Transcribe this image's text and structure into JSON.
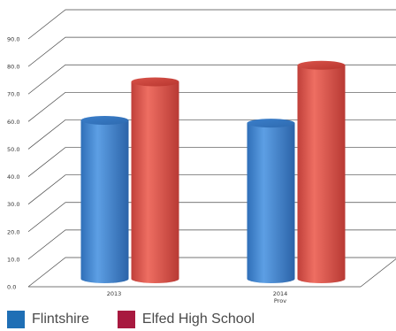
{
  "chart_data": {
    "type": "bar",
    "categories": [
      "2013",
      "2014\nProv"
    ],
    "series": [
      {
        "name": "Flintshire",
        "values": [
          63,
          62
        ],
        "color": "#1f6fb5"
      },
      {
        "name": "Elfed High School",
        "values": [
          77,
          83
        ],
        "color": "#a8193f"
      }
    ],
    "ylim": [
      0,
      90
    ],
    "yticks": [
      "0.0",
      "10.0",
      "20.0",
      "30.0",
      "40.0",
      "50.0",
      "60.0",
      "70.0",
      "80.0",
      "90.0"
    ],
    "grid": true,
    "legend_position": "bottom-left",
    "bar_colors_rendered": [
      "#4a8fd6",
      "#dc5a4e"
    ]
  }
}
